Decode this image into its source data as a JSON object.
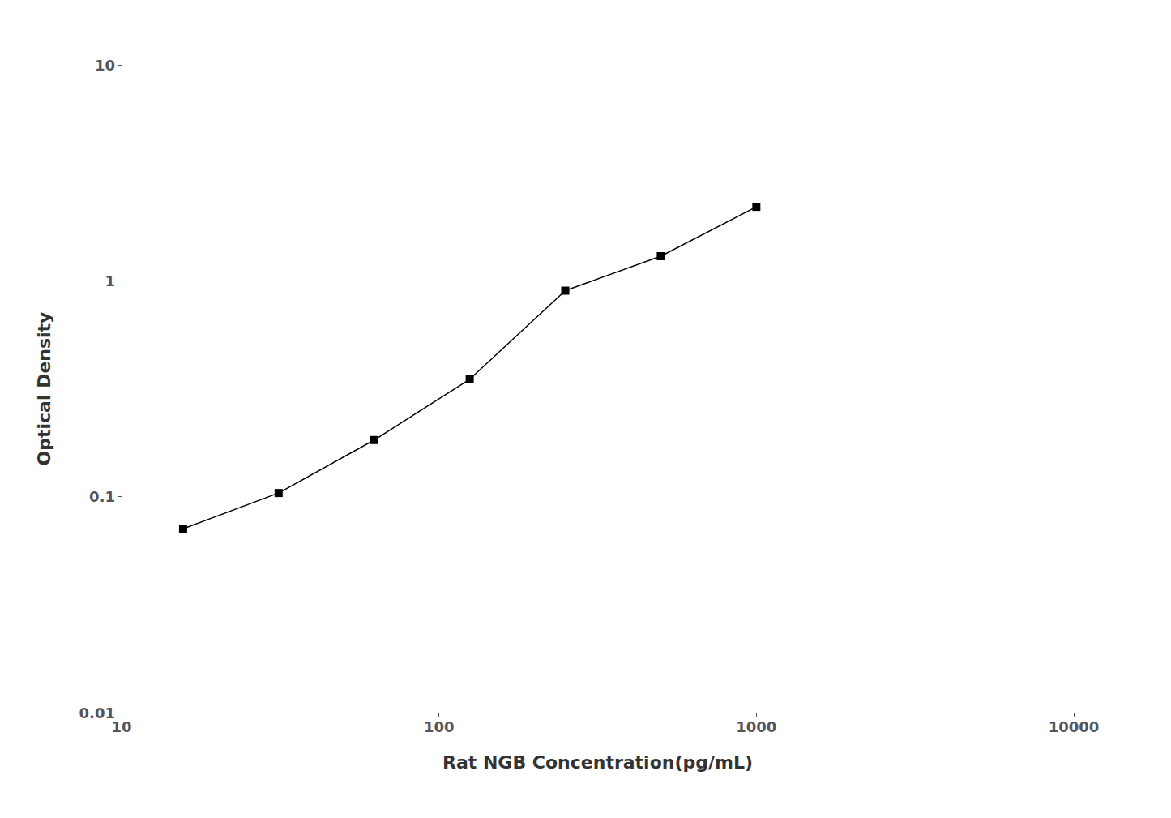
{
  "chart_data": {
    "type": "line",
    "x": [
      15.625,
      31.25,
      62.5,
      125,
      250,
      500,
      1000
    ],
    "values": [
      0.071,
      0.104,
      0.183,
      0.35,
      0.9,
      1.3,
      2.2
    ],
    "xlabel": "Rat NGB Concentration(pg/mL)",
    "ylabel": "Optical Density",
    "xlim": [
      10,
      10000
    ],
    "ylim": [
      0.01,
      10
    ],
    "xticks": [
      10,
      100,
      1000,
      10000
    ],
    "yticks": [
      0.01,
      0.1,
      1,
      10
    ],
    "log": true,
    "grid": false,
    "color": "#000000",
    "marker": "square"
  }
}
